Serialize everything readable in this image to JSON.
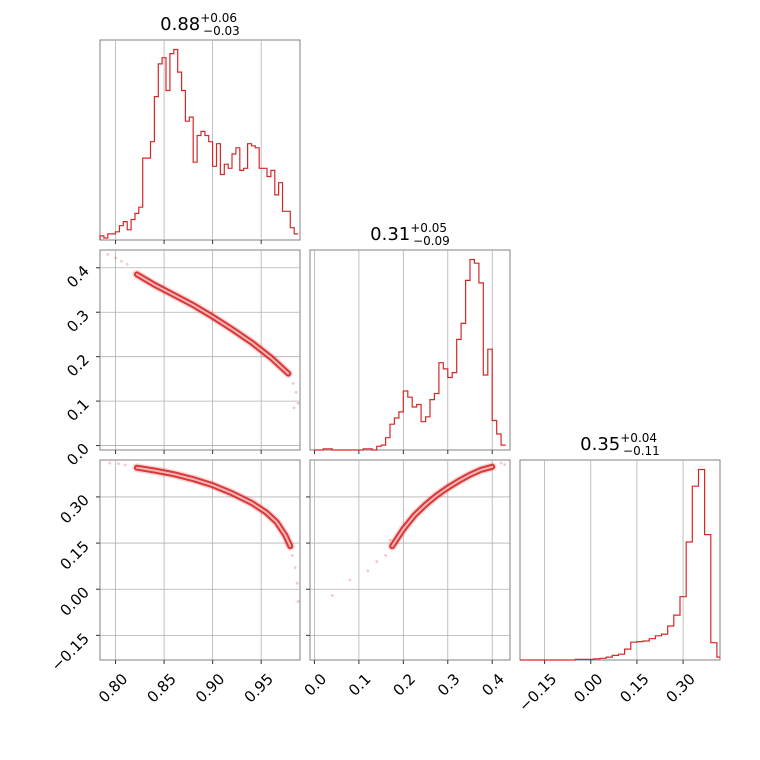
{
  "chart_data": {
    "type": "corner",
    "color": "#d62728",
    "parameters": [
      {
        "title": {
          "value": "0.88",
          "plus": "+0.06",
          "minus": "−0.03"
        },
        "range": [
          0.784,
          0.99
        ],
        "ticks": [
          "0.80",
          "0.85",
          "0.90",
          "0.95"
        ],
        "tick_values": [
          0.8,
          0.85,
          0.9,
          0.95
        ],
        "histogram": {
          "bins": [
            0.784,
            0.788,
            0.792,
            0.796,
            0.8,
            0.804,
            0.808,
            0.812,
            0.816,
            0.82,
            0.824,
            0.828,
            0.832,
            0.836,
            0.84,
            0.844,
            0.848,
            0.852,
            0.856,
            0.86,
            0.864,
            0.868,
            0.872,
            0.876,
            0.88,
            0.884,
            0.888,
            0.892,
            0.896,
            0.9,
            0.904,
            0.908,
            0.912,
            0.916,
            0.92,
            0.924,
            0.928,
            0.932,
            0.936,
            0.94,
            0.944,
            0.948,
            0.952,
            0.956,
            0.96,
            0.964,
            0.968,
            0.972,
            0.976,
            0.98,
            0.984,
            0.988
          ],
          "counts": [
            2,
            1,
            3,
            3,
            4,
            7,
            9,
            5,
            10,
            13,
            16,
            40,
            40,
            48,
            70,
            86,
            89,
            73,
            91,
            93,
            82,
            73,
            58,
            60,
            38,
            51,
            53,
            51,
            48,
            36,
            47,
            32,
            37,
            35,
            42,
            45,
            34,
            35,
            47,
            46,
            45,
            35,
            35,
            31,
            34,
            22,
            28,
            14,
            14,
            6,
            3
          ]
        }
      },
      {
        "title": {
          "value": "0.31",
          "plus": "+0.05",
          "minus": "−0.09"
        },
        "range": [
          -0.01,
          0.44
        ],
        "ticks": [
          "0.0",
          "0.1",
          "0.2",
          "0.3",
          "0.4"
        ],
        "tick_values": [
          0.0,
          0.1,
          0.2,
          0.3,
          0.4
        ],
        "histogram": {
          "bins": [
            0.0,
            0.01,
            0.02,
            0.03,
            0.04,
            0.05,
            0.06,
            0.07,
            0.08,
            0.09,
            0.1,
            0.11,
            0.12,
            0.13,
            0.14,
            0.15,
            0.16,
            0.17,
            0.18,
            0.19,
            0.2,
            0.21,
            0.22,
            0.23,
            0.24,
            0.25,
            0.26,
            0.27,
            0.28,
            0.29,
            0.3,
            0.31,
            0.32,
            0.33,
            0.34,
            0.35,
            0.36,
            0.37,
            0.38,
            0.39,
            0.4,
            0.41,
            0.42,
            0.43
          ],
          "counts": [
            0,
            0,
            1,
            1,
            0,
            0,
            0,
            0,
            0,
            0,
            0,
            1,
            1,
            0,
            3,
            4,
            10,
            21,
            26,
            31,
            48,
            43,
            35,
            37,
            23,
            27,
            41,
            46,
            71,
            66,
            59,
            63,
            90,
            103,
            138,
            155,
            152,
            136,
            61,
            82,
            24,
            13,
            4
          ]
        }
      },
      {
        "title": {
          "value": "0.35",
          "plus": "+0.04",
          "minus": "−0.11"
        },
        "range": [
          -0.23,
          0.42
        ],
        "ticks": [
          "−0.15",
          "0.00",
          "0.15",
          "0.30"
        ],
        "tick_values": [
          -0.15,
          0.0,
          0.15,
          0.3
        ],
        "histogram": {
          "bins": [
            -0.23,
            -0.21,
            -0.19,
            -0.17,
            -0.15,
            -0.13,
            -0.11,
            -0.09,
            -0.07,
            -0.05,
            -0.03,
            -0.01,
            0.01,
            0.03,
            0.05,
            0.07,
            0.09,
            0.11,
            0.13,
            0.15,
            0.17,
            0.19,
            0.21,
            0.23,
            0.25,
            0.27,
            0.29,
            0.31,
            0.33,
            0.35,
            0.37,
            0.39,
            0.41,
            0.42
          ],
          "counts": [
            0,
            0,
            0,
            0,
            0,
            0,
            0,
            0,
            0,
            1,
            1,
            1,
            2,
            3,
            5,
            8,
            10,
            19,
            31,
            32,
            33,
            37,
            42,
            45,
            59,
            78,
            110,
            205,
            302,
            331,
            218,
            30,
            5
          ]
        }
      }
    ],
    "joint": [
      {
        "x_param": 0,
        "y_param": 1,
        "ridge": [
          [
            0.822,
            0.385
          ],
          [
            0.84,
            0.362
          ],
          [
            0.86,
            0.339
          ],
          [
            0.88,
            0.316
          ],
          [
            0.9,
            0.29
          ],
          [
            0.92,
            0.262
          ],
          [
            0.94,
            0.232
          ],
          [
            0.96,
            0.198
          ],
          [
            0.978,
            0.162
          ]
        ],
        "scatter": [
          [
            0.792,
            0.43
          ],
          [
            0.8,
            0.422
          ],
          [
            0.806,
            0.415
          ],
          [
            0.812,
            0.408
          ],
          [
            0.983,
            0.14
          ],
          [
            0.986,
            0.12
          ],
          [
            0.988,
            0.095
          ],
          [
            0.984,
            0.085
          ]
        ]
      },
      {
        "x_param": 0,
        "y_param": 2,
        "ridge": [
          [
            0.822,
            0.395
          ],
          [
            0.84,
            0.386
          ],
          [
            0.86,
            0.374
          ],
          [
            0.88,
            0.358
          ],
          [
            0.9,
            0.338
          ],
          [
            0.92,
            0.312
          ],
          [
            0.94,
            0.281
          ],
          [
            0.955,
            0.25
          ],
          [
            0.966,
            0.218
          ],
          [
            0.975,
            0.175
          ],
          [
            0.98,
            0.14
          ]
        ],
        "scatter": [
          [
            0.794,
            0.41
          ],
          [
            0.803,
            0.408
          ],
          [
            0.81,
            0.404
          ],
          [
            0.982,
            0.11
          ],
          [
            0.985,
            0.07
          ],
          [
            0.987,
            0.02
          ],
          [
            0.988,
            -0.04
          ]
        ]
      },
      {
        "x_param": 1,
        "y_param": 2,
        "ridge": [
          [
            0.175,
            0.14
          ],
          [
            0.2,
            0.195
          ],
          [
            0.225,
            0.24
          ],
          [
            0.25,
            0.275
          ],
          [
            0.275,
            0.305
          ],
          [
            0.3,
            0.33
          ],
          [
            0.325,
            0.352
          ],
          [
            0.35,
            0.372
          ],
          [
            0.375,
            0.388
          ],
          [
            0.4,
            0.398
          ]
        ],
        "scatter": [
          [
            0.04,
            -0.02
          ],
          [
            0.08,
            0.03
          ],
          [
            0.12,
            0.06
          ],
          [
            0.14,
            0.09
          ],
          [
            0.16,
            0.11
          ],
          [
            0.17,
            0.16
          ],
          [
            0.42,
            0.41
          ],
          [
            0.428,
            0.405
          ]
        ]
      }
    ]
  }
}
